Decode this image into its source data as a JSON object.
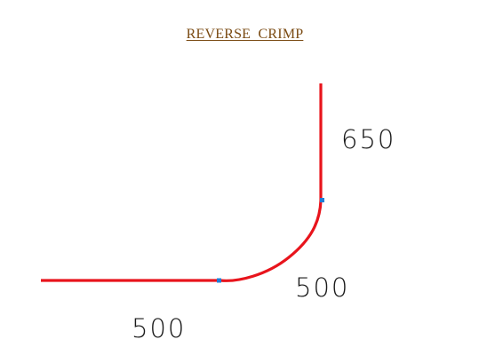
{
  "title": "REVERSE  CRIMP",
  "colors": {
    "title": "#7a4a12",
    "profile_line": "#e8141c",
    "node_marker": "#1e7fd8",
    "dimension_text": "#1a1a1a"
  },
  "dimensions": {
    "vertical_leg": "650",
    "arc_segment": "500",
    "horizontal_leg": "500"
  },
  "profile": {
    "segments": [
      {
        "type": "straight",
        "length": 500
      },
      {
        "type": "arc",
        "length": 500
      },
      {
        "type": "straight",
        "length": 650
      }
    ]
  }
}
